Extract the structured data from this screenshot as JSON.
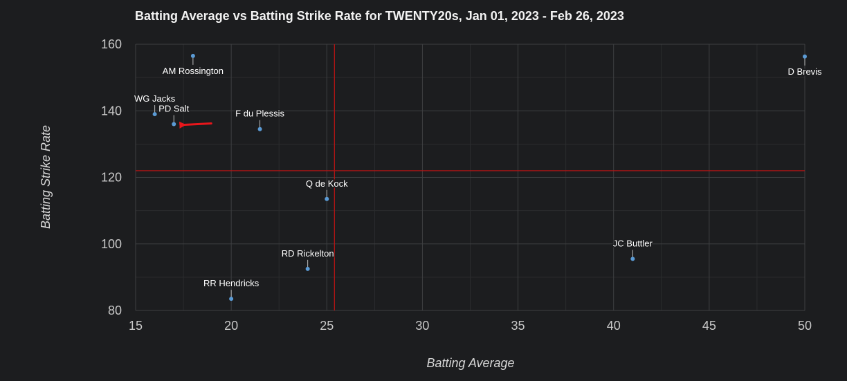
{
  "chart_data": {
    "type": "scatter",
    "title": "Batting Average vs Batting Strike Rate for TWENTY20s, Jan 01, 2023 - Feb 26, 2023",
    "xlabel": "Batting Average",
    "ylabel": "Batting Strike Rate",
    "xlim": [
      15,
      50
    ],
    "ylim": [
      80,
      160
    ],
    "xticks": [
      15,
      20,
      25,
      30,
      35,
      40,
      45,
      50
    ],
    "yticks": [
      80,
      100,
      120,
      140,
      160
    ],
    "grid": true,
    "reference_lines": {
      "x": 25.4,
      "y": 122,
      "color": "#b01515"
    },
    "point_color": "#5b9bd5",
    "points": [
      {
        "label": "AM Rossington",
        "x": 18.0,
        "y": 156.5,
        "label_pos": "below"
      },
      {
        "label": "WG Jacks",
        "x": 16.0,
        "y": 139.0,
        "label_pos": "above"
      },
      {
        "label": "PD Salt",
        "x": 17.0,
        "y": 136.0,
        "label_pos": "above"
      },
      {
        "label": "F du Plessis",
        "x": 21.5,
        "y": 134.5,
        "label_pos": "above"
      },
      {
        "label": "Q de Kock",
        "x": 25.0,
        "y": 113.5,
        "label_pos": "above"
      },
      {
        "label": "RD Rickelton",
        "x": 24.0,
        "y": 92.5,
        "label_pos": "above"
      },
      {
        "label": "RR Hendricks",
        "x": 20.0,
        "y": 83.5,
        "label_pos": "above"
      },
      {
        "label": "JC Buttler",
        "x": 41.0,
        "y": 95.5,
        "label_pos": "above"
      },
      {
        "label": "D Brevis",
        "x": 50.0,
        "y": 156.3,
        "label_pos": "below"
      }
    ],
    "highlight": {
      "target": "PD Salt",
      "type": "arrow",
      "color": "#e8161b"
    }
  }
}
